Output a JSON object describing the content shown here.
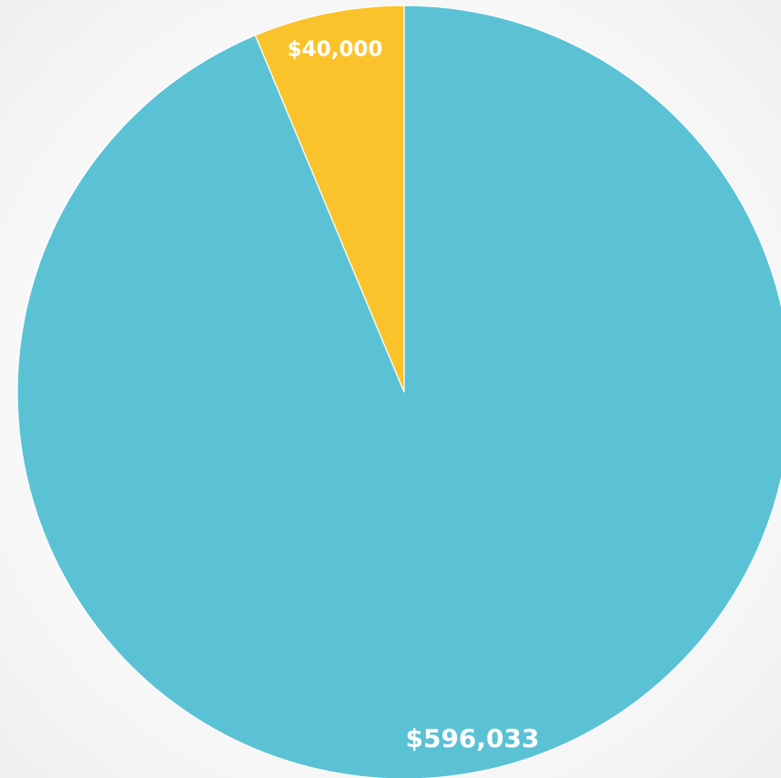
{
  "chart_data": {
    "type": "pie",
    "categories": [
      "",
      ""
    ],
    "values": [
      596033,
      40000
    ],
    "labels": [
      "$596,033",
      "$40,000"
    ],
    "colors": [
      "#5BC2D6",
      "#FBC32B"
    ],
    "title": "",
    "legend": "none"
  }
}
